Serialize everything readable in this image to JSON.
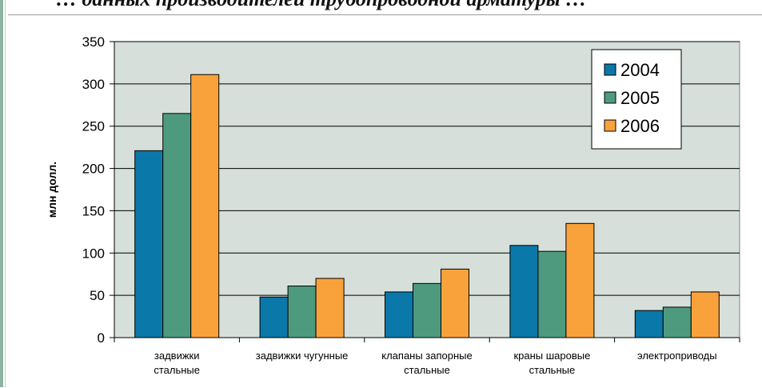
{
  "slide": {
    "title": "… данных производителей трубопроводной арматуры …"
  },
  "chart_data": {
    "type": "bar",
    "title": "",
    "xlabel": "",
    "ylabel": "млн долл.",
    "ylim": [
      0,
      350
    ],
    "yticks": [
      0,
      50,
      100,
      150,
      200,
      250,
      300,
      350
    ],
    "grid": true,
    "legend_position": "top-right",
    "categories": [
      [
        "задвижки",
        "стальные"
      ],
      [
        "задвижки чугунные"
      ],
      [
        "клапаны запорные",
        "стальные"
      ],
      [
        "краны шаровые",
        "стальные"
      ],
      [
        "электроприводы"
      ]
    ],
    "series": [
      {
        "name": "2004",
        "color": "#0a78a8",
        "values": [
          221,
          48,
          54,
          109,
          32
        ]
      },
      {
        "name": "2005",
        "color": "#4e9a7f",
        "values": [
          265,
          61,
          64,
          102,
          36
        ]
      },
      {
        "name": "2006",
        "color": "#f9a23c",
        "values": [
          311,
          70,
          81,
          135,
          54
        ]
      }
    ],
    "plot_background": "#d6dfd9"
  }
}
